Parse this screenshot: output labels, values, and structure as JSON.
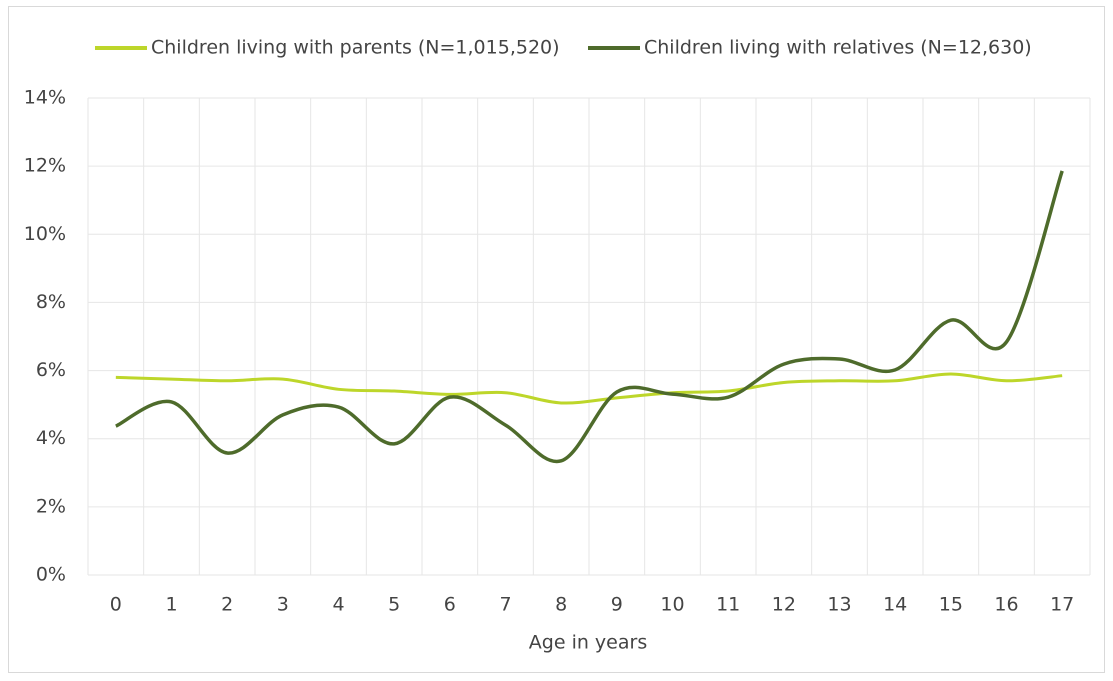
{
  "chart_data": {
    "type": "line",
    "xlabel": "Age in years",
    "categories": [
      "0",
      "1",
      "2",
      "3",
      "4",
      "5",
      "6",
      "7",
      "8",
      "9",
      "10",
      "11",
      "12",
      "13",
      "14",
      "15",
      "16",
      "17"
    ],
    "series": [
      {
        "name": "Children living with parents (N=1,015,520)",
        "color": "#bdd62a",
        "values": [
          5.8,
          5.75,
          5.7,
          5.75,
          5.45,
          5.4,
          5.3,
          5.35,
          5.05,
          5.2,
          5.35,
          5.4,
          5.65,
          5.7,
          5.7,
          5.9,
          5.7,
          5.85
        ]
      },
      {
        "name": "Children living with relatives (N=12,630)",
        "color": "#4e6b2b",
        "values": [
          4.37,
          5.08,
          3.58,
          4.7,
          4.93,
          3.85,
          5.22,
          4.4,
          3.35,
          5.37,
          5.31,
          5.22,
          6.19,
          6.34,
          6.02,
          7.48,
          6.84,
          11.86
        ]
      }
    ],
    "ylim": [
      0,
      14
    ],
    "yticks": [
      {
        "value": 0,
        "label": "0%"
      },
      {
        "value": 2,
        "label": "2%"
      },
      {
        "value": 4,
        "label": "4%"
      },
      {
        "value": 6,
        "label": "6%"
      },
      {
        "value": 8,
        "label": "8%"
      },
      {
        "value": 10,
        "label": "10%"
      },
      {
        "value": 12,
        "label": "12%"
      },
      {
        "value": 14,
        "label": "14%"
      }
    ],
    "grid": true,
    "smooth": true,
    "legend": "top"
  }
}
